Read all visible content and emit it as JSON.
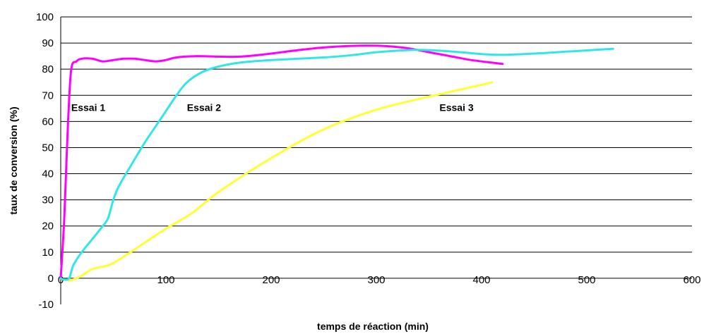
{
  "chart_data": {
    "type": "line",
    "title": "",
    "xlabel": "temps de réaction (min)",
    "ylabel": "taux de conversion (%)",
    "xlim": [
      0,
      600
    ],
    "ylim": [
      -10,
      100
    ],
    "xticks": [
      0,
      100,
      200,
      300,
      400,
      500,
      600
    ],
    "yticks": [
      -10,
      0,
      10,
      20,
      30,
      40,
      50,
      60,
      70,
      80,
      90,
      100
    ],
    "grid": "horizontal",
    "legend": "none",
    "series": [
      {
        "name": "Essai 1",
        "color": "#ff00ff",
        "label_at": [
          10,
          64
        ],
        "points": [
          [
            0,
            0
          ],
          [
            3,
            20
          ],
          [
            5,
            40
          ],
          [
            7,
            60
          ],
          [
            10,
            80
          ],
          [
            15,
            83
          ],
          [
            20,
            84
          ],
          [
            30,
            84
          ],
          [
            40,
            83
          ],
          [
            50,
            83.5
          ],
          [
            60,
            84
          ],
          [
            70,
            84
          ],
          [
            80,
            83.5
          ],
          [
            90,
            83
          ],
          [
            100,
            83.5
          ],
          [
            110,
            84.5
          ],
          [
            130,
            85
          ],
          [
            150,
            84.8
          ],
          [
            170,
            84.8
          ],
          [
            190,
            85.5
          ],
          [
            210,
            86.5
          ],
          [
            230,
            87.5
          ],
          [
            250,
            88.3
          ],
          [
            270,
            88.8
          ],
          [
            290,
            89
          ],
          [
            310,
            88.8
          ],
          [
            330,
            88
          ],
          [
            350,
            86.5
          ],
          [
            370,
            85
          ],
          [
            390,
            83.5
          ],
          [
            410,
            82.5
          ],
          [
            420,
            82
          ]
        ]
      },
      {
        "name": "Essai 2",
        "color": "#33e6e6",
        "label_at": [
          120,
          64
        ],
        "points": [
          [
            0,
            0
          ],
          [
            3,
            -0.5
          ],
          [
            8,
            0
          ],
          [
            12,
            5
          ],
          [
            20,
            10
          ],
          [
            30,
            15
          ],
          [
            40,
            20
          ],
          [
            45,
            23
          ],
          [
            50,
            30
          ],
          [
            55,
            35
          ],
          [
            65,
            42
          ],
          [
            80,
            52
          ],
          [
            90,
            58
          ],
          [
            100,
            64
          ],
          [
            110,
            70
          ],
          [
            120,
            75
          ],
          [
            135,
            79
          ],
          [
            150,
            81
          ],
          [
            170,
            82.5
          ],
          [
            200,
            83.5
          ],
          [
            250,
            84.5
          ],
          [
            280,
            85.5
          ],
          [
            300,
            86.5
          ],
          [
            330,
            87.3
          ],
          [
            350,
            87.3
          ],
          [
            380,
            86.5
          ],
          [
            400,
            85.8
          ],
          [
            420,
            85.5
          ],
          [
            440,
            85.8
          ],
          [
            460,
            86.2
          ],
          [
            480,
            86.7
          ],
          [
            500,
            87.2
          ],
          [
            525,
            87.8
          ]
        ]
      },
      {
        "name": "Essai  3",
        "color": "#ffff33",
        "label_at": [
          360,
          64
        ],
        "points": [
          [
            8,
            -1
          ],
          [
            15,
            0
          ],
          [
            20,
            1
          ],
          [
            30,
            3.5
          ],
          [
            45,
            5
          ],
          [
            55,
            7
          ],
          [
            70,
            11
          ],
          [
            100,
            19
          ],
          [
            125,
            25
          ],
          [
            150,
            33
          ],
          [
            200,
            46
          ],
          [
            250,
            57
          ],
          [
            300,
            64.5
          ],
          [
            350,
            69.5
          ],
          [
            400,
            74
          ],
          [
            410,
            75
          ]
        ]
      }
    ]
  }
}
